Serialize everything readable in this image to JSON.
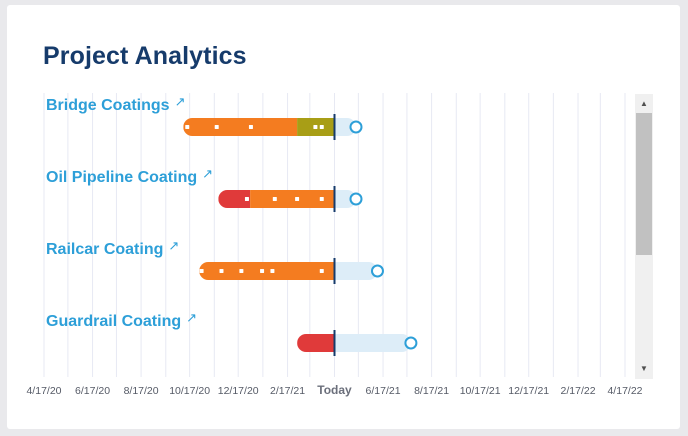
{
  "title": "Project Analytics",
  "colors": {
    "title": "#163b6b",
    "project_link": "#2d9fd8",
    "orange": "#f47c20",
    "red": "#e03a3a",
    "olive": "#a89e16",
    "forecast": "#ddedf8",
    "today_line": "#163b6b",
    "grid": "#e7e9f3"
  },
  "axis": {
    "ticks": [
      "4/17/20",
      "6/17/20",
      "8/17/20",
      "10/17/20",
      "12/17/20",
      "2/17/21",
      "6/17/21",
      "8/17/21",
      "10/17/21",
      "12/17/21",
      "2/17/22",
      "4/17/22"
    ],
    "today_label": "Today"
  },
  "chart_data": {
    "type": "gantt",
    "today": "2021-04-17",
    "x_range": [
      "2020-04-17",
      "2022-04-17"
    ],
    "projects": [
      {
        "name": "Bridge Coatings",
        "segments": [
          {
            "start": "2020-10-09",
            "end": "2021-03-01",
            "status": "orange"
          },
          {
            "start": "2021-03-01",
            "end": "2021-04-17",
            "status": "olive"
          }
        ],
        "forecast_end": "2021-05-14",
        "events": [
          "2020-10-14",
          "2020-11-20",
          "2021-01-02",
          "2021-03-24",
          "2021-04-01"
        ]
      },
      {
        "name": "Oil Pipeline Coating",
        "segments": [
          {
            "start": "2020-11-22",
            "end": "2021-01-01",
            "status": "red"
          },
          {
            "start": "2021-01-01",
            "end": "2021-04-17",
            "status": "orange"
          }
        ],
        "forecast_end": "2021-05-14",
        "events": [
          "2020-12-28",
          "2021-02-01",
          "2021-03-01",
          "2021-04-01"
        ]
      },
      {
        "name": "Railcar Coating",
        "segments": [
          {
            "start": "2020-10-29",
            "end": "2021-04-17",
            "status": "orange"
          }
        ],
        "forecast_end": "2021-06-10",
        "events": [
          "2020-11-01",
          "2020-11-26",
          "2020-12-21",
          "2021-01-16",
          "2021-01-29",
          "2021-04-01"
        ]
      },
      {
        "name": "Guardrail Coating",
        "segments": [
          {
            "start": "2021-03-01",
            "end": "2021-04-17",
            "status": "red"
          }
        ],
        "forecast_end": "2021-07-22",
        "events": []
      }
    ]
  }
}
